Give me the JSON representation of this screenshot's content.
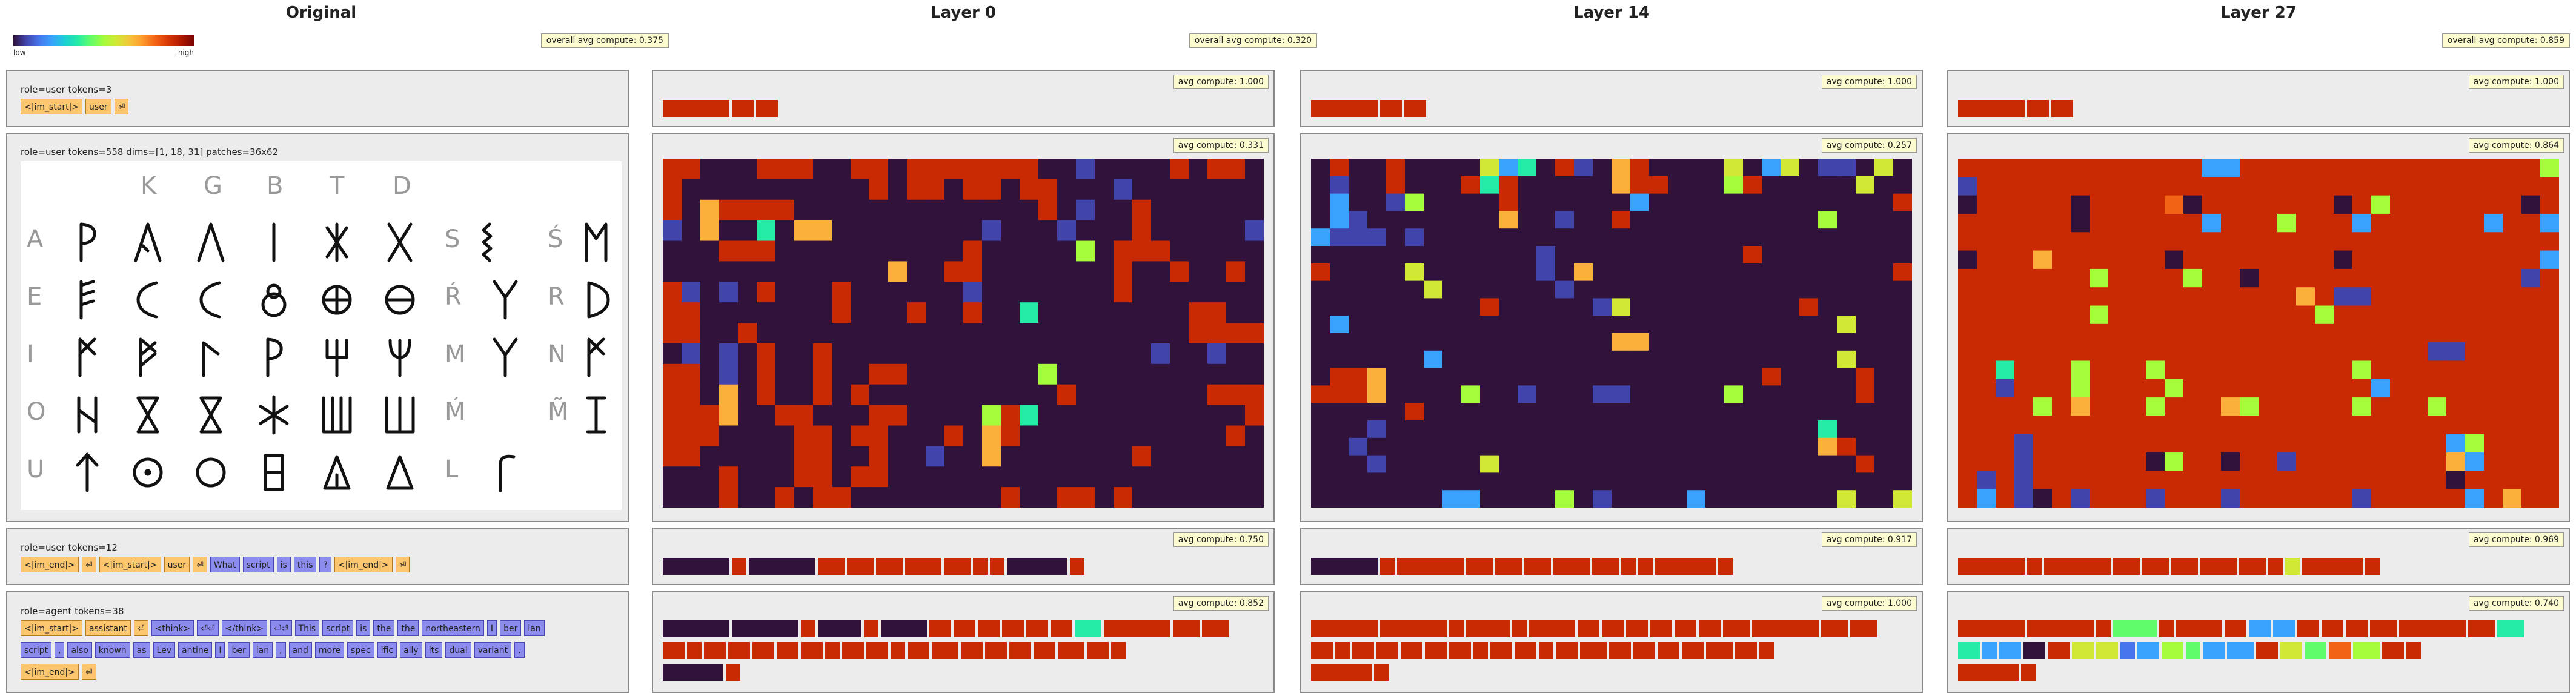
{
  "titles": {
    "original": "Original",
    "layer0": "Layer 0",
    "layer14": "Layer 14",
    "layer27": "Layer 27"
  },
  "legend": {
    "low": "low",
    "high": "high"
  },
  "overall": {
    "layer0": "overall avg compute: 0.375",
    "layer14": "overall avg compute: 0.320",
    "layer27": "overall avg compute: 0.859"
  },
  "original": {
    "block1": {
      "label": "role=user  tokens=3",
      "tokens": [
        {
          "t": "<|im_start|>",
          "k": "s"
        },
        {
          "t": "user",
          "k": "s"
        },
        {
          "t": "⏎",
          "k": "s"
        }
      ]
    },
    "block2": {
      "label": "role=user  tokens=558  dims=[1, 18, 31]  patches=36x62",
      "image": {
        "header": [
          "K",
          "G",
          "B",
          "T",
          "D"
        ],
        "rowlabels": [
          "A",
          "E",
          "I",
          "O",
          "U"
        ],
        "right": [
          [
            "S",
            "Ś"
          ],
          [
            "Ŕ",
            "R"
          ],
          [
            "M",
            "N"
          ],
          [
            "Ḿ",
            "M̃"
          ],
          [
            "L"
          ]
        ]
      }
    },
    "block3": {
      "label": "role=user  tokens=12",
      "tokens": [
        {
          "t": "<|im_end|>",
          "k": "s"
        },
        {
          "t": "⏎",
          "k": "s"
        },
        {
          "t": "<|im_start|>",
          "k": "s"
        },
        {
          "t": "user",
          "k": "s"
        },
        {
          "t": "⏎",
          "k": "s"
        },
        {
          "t": "What",
          "k": "x"
        },
        {
          "t": "script",
          "k": "x"
        },
        {
          "t": "is",
          "k": "x"
        },
        {
          "t": "this",
          "k": "x"
        },
        {
          "t": "?",
          "k": "x"
        },
        {
          "t": "<|im_end|>",
          "k": "s"
        },
        {
          "t": "⏎",
          "k": "s"
        }
      ]
    },
    "block4": {
      "label": "role=agent  tokens=38",
      "rows": [
        [
          {
            "t": "<|im_start|>",
            "k": "s"
          },
          {
            "t": "assistant",
            "k": "s"
          },
          {
            "t": "⏎",
            "k": "s"
          },
          {
            "t": "<think>",
            "k": "x"
          },
          {
            "t": "⏎⏎",
            "k": "x"
          },
          {
            "t": "</think>",
            "k": "x"
          },
          {
            "t": "⏎⏎",
            "k": "x"
          },
          {
            "t": "This",
            "k": "x"
          },
          {
            "t": "script",
            "k": "x"
          },
          {
            "t": "is",
            "k": "x"
          },
          {
            "t": "the",
            "k": "x"
          },
          {
            "t": "the",
            "k": "x"
          },
          {
            "t": "northeastern",
            "k": "x"
          },
          {
            "t": "I",
            "k": "x"
          },
          {
            "t": "ber",
            "k": "x"
          },
          {
            "t": "ian",
            "k": "x"
          }
        ],
        [
          {
            "t": "script",
            "k": "x"
          },
          {
            "t": ",",
            "k": "x"
          },
          {
            "t": "also",
            "k": "x"
          },
          {
            "t": "known",
            "k": "x"
          },
          {
            "t": "as",
            "k": "x"
          },
          {
            "t": "Lev",
            "k": "x"
          },
          {
            "t": "antine",
            "k": "x"
          },
          {
            "t": "I",
            "k": "x"
          },
          {
            "t": "ber",
            "k": "x"
          },
          {
            "t": "ian",
            "k": "x"
          },
          {
            "t": ",",
            "k": "x"
          },
          {
            "t": "and",
            "k": "x"
          },
          {
            "t": "more",
            "k": "x"
          },
          {
            "t": "spec",
            "k": "x"
          },
          {
            "t": "ific",
            "k": "x"
          },
          {
            "t": "ally",
            "k": "x"
          },
          {
            "t": "its",
            "k": "x"
          },
          {
            "t": "dual",
            "k": "x"
          },
          {
            "t": "variant",
            "k": "x"
          },
          {
            "t": ".",
            "k": "x"
          }
        ],
        [
          {
            "t": "<|im_end|>",
            "k": "s"
          },
          {
            "t": "⏎",
            "k": "s"
          }
        ]
      ]
    }
  },
  "layers": [
    {
      "avg": [
        "avg compute: 1.000",
        "avg compute: 0.331",
        "avg compute: 0.750",
        "avg compute: 0.852"
      ],
      "b1": [
        "#c92a04",
        "#c92a04",
        "#c92a04"
      ],
      "b3": [
        "#30123b",
        "#c92a04",
        "#30123b",
        "#c92a04",
        "#c92a04",
        "#c92a04",
        "#c92a04",
        "#c92a04",
        "#c92a04",
        "#c92a04",
        "#30123b",
        "#c92a04"
      ],
      "b4": [
        [
          "#30123b",
          "#30123b",
          "#c92a04",
          "#30123b",
          "#c92a04",
          "#30123b",
          "#c92a04",
          "#c92a04",
          "#c92a04",
          "#c92a04",
          "#c92a04",
          "#c92a04",
          "#24eca6",
          "#c92a04",
          "#c92a04",
          "#c92a04"
        ],
        [
          "#c92a04",
          "#c92a04",
          "#c92a04",
          "#c92a04",
          "#c92a04",
          "#c92a04",
          "#c92a04",
          "#c92a04",
          "#c92a04",
          "#c92a04",
          "#c92a04",
          "#c92a04",
          "#c92a04",
          "#c92a04",
          "#c92a04",
          "#c92a04",
          "#c92a04",
          "#c92a04",
          "#c92a04",
          "#c92a04"
        ],
        [
          "#30123b",
          "#c92a04"
        ]
      ],
      "grid": [
        "CCDDDCCCDDCCDCCCCCCCDDBDDDDCDCCD",
        "CDDDDDDDDDDCDCCDCCDCCDDDBDDDDDDD",
        "CDFCCCCDDDDDDDDDDDDDCDBDDCDDDDDD",
        "BDFDDKDFFDDDDDDDDBDDDBDDDCDDDDDB",
        "DDDCCCDDDDDDDDDDCDDDDDGDCCCDDDDD",
        "DDDDDDDDDDDDFDDCCDDDDDDDCDDCDDCD",
        "CBDBDCDDDCDDDDDDBDDDDDDDCDDDDDDD",
        "CCDDDDDDDCDDDCDDCDDKDDDDDDDDCCDD",
        "CCDDCDDDDDDDDDDDDDDDDDDDDDDDCCCC",
        "DBDBDCDDCDDDDDDDDDDDDDDDDDBDDBDD",
        "CCDBDCDDCDDCCDDDDDDDGDDDDDDDDDDD",
        "CCDFDCDDCDCDDDDDDDDDDCDDDDDDDCCC",
        "CCCFDDCCDDDCCDDDDGCKDDDDDDDDDDDC",
        "CCCDDDDCCDCCDDDCDFCDDDDDDDDDDDCD",
        "CCDDDDDCCDDCDDBDDFDDDDDDDCDDDDDD",
        "DDDCDDDCCDCCDDDDDDDDDDDDDDDDDDDD",
        "DDDCDDCDCCDDDDDDDDCDDCCDCDDDDDDD"
      ]
    },
    {
      "avg": [
        "avg compute: 1.000",
        "avg compute: 0.257",
        "avg compute: 0.917",
        "avg compute: 1.000"
      ],
      "b1": [
        "#c92a04",
        "#c92a04",
        "#c92a04"
      ],
      "b3": [
        "#30123b",
        "#c92a04",
        "#c92a04",
        "#c92a04",
        "#c92a04",
        "#c92a04",
        "#c92a04",
        "#c92a04",
        "#c92a04",
        "#c92a04",
        "#c92a04",
        "#c92a04"
      ],
      "b4": [
        [
          "#c92a04",
          "#c92a04",
          "#c92a04",
          "#c92a04",
          "#c92a04",
          "#c92a04",
          "#c92a04",
          "#c92a04",
          "#c92a04",
          "#c92a04",
          "#c92a04",
          "#c92a04",
          "#c92a04",
          "#c92a04",
          "#c92a04",
          "#c92a04"
        ],
        [
          "#c92a04",
          "#c92a04",
          "#c92a04",
          "#c92a04",
          "#c92a04",
          "#c92a04",
          "#c92a04",
          "#c92a04",
          "#c92a04",
          "#c92a04",
          "#c92a04",
          "#c92a04",
          "#c92a04",
          "#c92a04",
          "#c92a04",
          "#c92a04",
          "#c92a04",
          "#c92a04",
          "#c92a04",
          "#c92a04"
        ],
        [
          "#c92a04",
          "#c92a04"
        ]
      ],
      "grid": [
        "DCDDCDDDDJHKDCBDFCDDDDJDHJDBBDJD",
        "DBDDCDDDCKCDDDDDFCCDDDGCDDDDDJDD",
        "DHDDBGDDDDCDDDDDDHDDDDDDDDDDDDDC",
        "DHBDDDDDDDFDDBDDCDDDDDDDDDDGDDDD",
        "HBBBDBDDDDDDDDDDDDDDDDDDDDDDDDDD",
        "DDDDDDDDDDDDBDDDDDDDDDDCDDDDDDDD",
        "CDDDDJDDDDDDBDFDDDDDDDDDDDDDDDDC",
        "DDDDDDJDDDDDDBDDDDDDDDDDDDDDDDDD",
        "DDDDDDDDDCDDDDDBJDDDDDDDDDCDDDDD",
        "DHDDDDDDDDDDDDDDDDDDDDDDDDDDJDDD",
        "DDDDDDDDDDDDDDDDFFDDDDDDDDDDDDDD",
        "DDDDDDHDDDDDDDDDDDDDDDDDDDDDJDDD",
        "DCCFDDDDDDDDDDDDDDDDDDDDCDDDDCDD",
        "CCCFDDDDGDDBDDDBBDDDDDGDDDDDDCDD",
        "DDDDDCDDDDDDDDDDDDDDDDDDDDDDDDDD",
        "DDDBDDDDDDDDDDDDDDDDDDDDDDDKDDDD",
        "DDBDDDDDDDDDDDDDDDDDDDDDDDDFCDDD",
        "DDDBDDDDDJDDDDDDDDDDDDDDDDDDDCDD",
        "DDDDDDDDDDDDDDDDDDDDDDDDDDDDDDDD",
        "DDDDDDDHHDDDDGDBDDDDHDDDDDDDJDDJ"
      ]
    },
    {
      "avg": [
        "avg compute: 1.000",
        "avg compute: 0.864",
        "avg compute: 0.969",
        "avg compute: 0.740"
      ],
      "b1": [
        "#c92a04",
        "#c92a04",
        "#c92a04"
      ],
      "b3": [
        "#c92a04",
        "#c92a04",
        "#c92a04",
        "#c92a04",
        "#c92a04",
        "#c92a04",
        "#c92a04",
        "#c92a04",
        "#c92a04",
        "#d1e834",
        "#c92a04",
        "#c92a04"
      ],
      "b4": [
        [
          "#c92a04",
          "#c92a04",
          "#c92a04",
          "#61fc6c",
          "#c92a04",
          "#c92a04",
          "#c92a04",
          "#39a2fc",
          "#39a2fc",
          "#c92a04",
          "#c92a04",
          "#c92a04",
          "#c92a04",
          "#c92a04",
          "#c92a04",
          "#24eca6"
        ],
        [
          "#24eca6",
          "#39a2fc",
          "#39a2fc",
          "#30123b",
          "#c92a04",
          "#d1e834",
          "#d1e834",
          "#4675ed",
          "#39a2fc",
          "#a4fc3b",
          "#61fc6c",
          "#39a2fc",
          "#39a2fc",
          "#c92a04",
          "#d1e834",
          "#61fc6c",
          "#f36315",
          "#a4fc3b",
          "#c92a04",
          "#c92a04"
        ],
        [
          "#c92a04",
          "#c92a04"
        ]
      ],
      "grid": [
        "CCCCCCCCCCCCCHHCCCCCCCCCCCCCCCCG",
        "BCCCCCCCCCCCCCCCCCCCCCCCCCCCCCCC",
        "DCCCCCDCCCCEDCCCCCCCDCGCCCCCCCDC",
        "CCCCCCDCCCCCCHCCCGCCCHCCCCCCHCCH",
        "CCCCCCCCCCCCCCCCCCCCCCCCCCCCCCCC",
        "DCCCFCCCCCCDCCCCCCCCDCCCCCCCCCCH",
        "CCCCCCCGCCCCGCCDCCCCCCCCCCCCCCBC",
        "CCCCCCCCCCCCCCCCCCFCBBCCCCCCCCCC",
        "CCCCCCCGCCCCCCCCCCCGCCCCCCCCCCCC",
        "CCCCCCCCCCCCCCCCCCCCCCCCCCCCCCCC",
        "CCCCCCCCCCCCCCCCCCCCCCCCCBBCCCCC",
        "CCKCCCGCCCGCCCCCCCCCCGCCCCCCCCCC",
        "CCBCCCGCCCCGCCCCCCCCCCHCCCCCCCCC",
        "CCCCGCFCCCGCCCFGCCCCCGCCCGCCCCCC",
        "CCCCCCCCCCCCCCCCCCCCCCCCCCCCCCCC",
        "CCCBCCCCCCCCCCCCCCCCCCCCCCHGCCCC",
        "CCCBCCCCCCDGCCDCCBCCCCCCCCFHCCCC",
        "CBCBCCCCCCCCCCCCCCCCCCCCCCDCCCCC",
        "CHCBDCBCCCBCCCBCCCCCCBCCCCCHCFCC"
      ]
    }
  ]
}
